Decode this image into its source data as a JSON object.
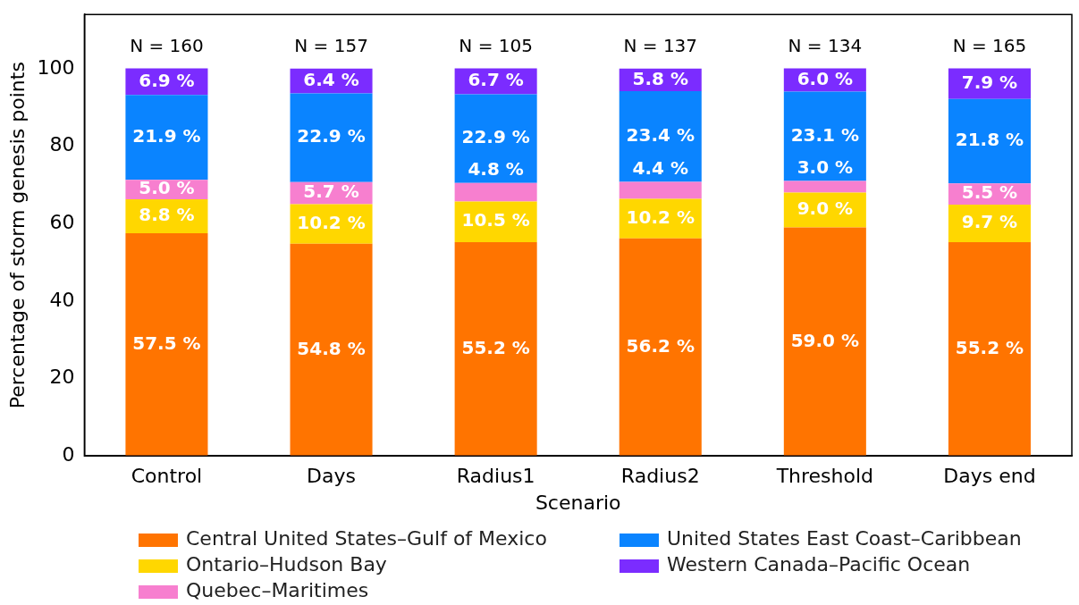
{
  "chart_data": {
    "type": "bar",
    "stacked": true,
    "xlabel": "Scenario",
    "ylabel": "Percentage of storm genesis points",
    "categories": [
      "Control",
      "Days",
      "Radius1",
      "Radius2",
      "Threshold",
      "Days end"
    ],
    "ylim": [
      0,
      114
    ],
    "yticks": [
      0,
      20,
      40,
      60,
      80,
      100
    ],
    "grid": false,
    "legend": "bottom",
    "series": [
      {
        "name": "Central United States–Gulf of Mexico",
        "color": "#ff7400",
        "values": [
          57.5,
          54.8,
          55.2,
          56.2,
          59.0,
          55.2
        ],
        "value_labels": [
          "57.5 %",
          "54.8 %",
          "55.2 %",
          "56.2 %",
          "59.0 %",
          "55.2 %"
        ]
      },
      {
        "name": "Ontario–Hudson Bay",
        "color": "#ffd700",
        "values": [
          8.8,
          10.2,
          10.5,
          10.2,
          9.0,
          9.7
        ],
        "value_labels": [
          "8.8 %",
          "10.2 %",
          "10.5 %",
          "10.2 %",
          "9.0 %",
          "9.7 %"
        ]
      },
      {
        "name": "Quebec–Maritimes",
        "color": "#f77fcf",
        "values": [
          5.0,
          5.7,
          4.8,
          4.4,
          3.0,
          5.5
        ],
        "value_labels": [
          "5.0 %",
          "5.7 %",
          "4.8 %",
          "4.4 %",
          "3.0 %",
          "5.5 %"
        ]
      },
      {
        "name": "United States East Coast–Caribbean",
        "color": "#0a84ff",
        "values": [
          21.9,
          22.9,
          22.9,
          23.4,
          23.1,
          21.8
        ],
        "value_labels": [
          "21.9 %",
          "22.9 %",
          "22.9 %",
          "23.4 %",
          "23.1 %",
          "21.8 %"
        ]
      },
      {
        "name": "Western Canada–Pacific Ocean",
        "color": "#7b2cff",
        "values": [
          6.9,
          6.4,
          6.7,
          5.8,
          6.0,
          7.9
        ],
        "value_labels": [
          "6.9 %",
          "6.4 %",
          "6.7 %",
          "5.8 %",
          "6.0 %",
          "7.9 %"
        ]
      }
    ],
    "annotations": [
      "N = 160",
      "N = 157",
      "N = 105",
      "N = 137",
      "N = 134",
      "N = 165"
    ]
  }
}
